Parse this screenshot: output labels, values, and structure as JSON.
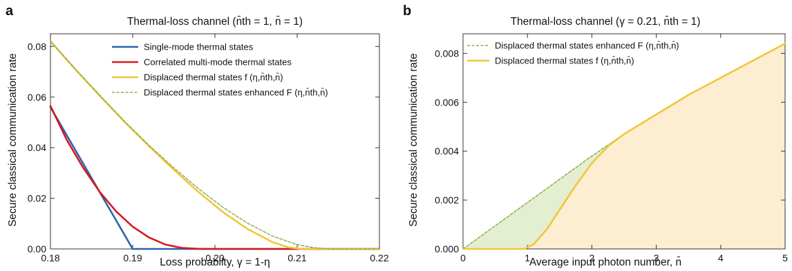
{
  "figure": {
    "panel_a_letter": "a",
    "panel_b_letter": "b"
  },
  "chart_data": [
    {
      "type": "line",
      "title": "Thermal-loss channel (n̄th = 1, n̄ = 1)",
      "xlabel": "Loss probabilty, γ = 1-η",
      "ylabel": "Secure classical communication rate",
      "xlim": [
        0.18,
        0.22
      ],
      "ylim": [
        0,
        0.085
      ],
      "xticks": [
        0.18,
        0.19,
        0.2,
        0.21,
        0.22
      ],
      "xtick_labels": [
        "0.18",
        "0.19",
        "0.20",
        "0.21",
        "0.22"
      ],
      "yticks": [
        0,
        0.02,
        0.04,
        0.06,
        0.08
      ],
      "ytick_labels": [
        "0.00",
        "0.02",
        "0.04",
        "0.06",
        "0.08"
      ],
      "grid": false,
      "legend": "top-center",
      "series": [
        {
          "name": "Single-mode thermal states",
          "color": "#2a62b0",
          "dash": "solid",
          "x": [
            0.18,
            0.19,
            0.22
          ],
          "y": [
            0.056,
            0.0,
            0.0
          ]
        },
        {
          "name": "Correlated multi-mode thermal states",
          "color": "#d7191c",
          "dash": "solid",
          "x": [
            0.18,
            0.182,
            0.184,
            0.186,
            0.188,
            0.19,
            0.192,
            0.194,
            0.196,
            0.198,
            0.1995,
            0.22
          ],
          "y": [
            0.0565,
            0.043,
            0.032,
            0.0225,
            0.0148,
            0.0088,
            0.0045,
            0.0017,
            0.0004,
            5e-05,
            0.0,
            0.0
          ]
        },
        {
          "name": "Displaced thermal states f (η,n̄th,n̄)",
          "color": "#f2c53d",
          "dash": "solid",
          "x": [
            0.18,
            0.183,
            0.186,
            0.189,
            0.192,
            0.195,
            0.198,
            0.201,
            0.204,
            0.207,
            0.209,
            0.2105,
            0.22
          ],
          "y": [
            0.082,
            0.071,
            0.0605,
            0.0502,
            0.0405,
            0.0313,
            0.0225,
            0.0145,
            0.0078,
            0.0027,
            0.0006,
            0.0,
            0.0
          ]
        },
        {
          "name": "Displaced thermal states enhanced F (η,n̄th,n̄)",
          "color": "#8db04a",
          "dash": "dashed",
          "x": [
            0.18,
            0.183,
            0.186,
            0.189,
            0.192,
            0.195,
            0.198,
            0.201,
            0.204,
            0.207,
            0.21,
            0.212,
            0.214,
            0.22
          ],
          "y": [
            0.0822,
            0.0712,
            0.0607,
            0.0505,
            0.0409,
            0.032,
            0.0238,
            0.0164,
            0.0101,
            0.0051,
            0.0017,
            0.0005,
            0.0,
            0.0
          ]
        }
      ]
    },
    {
      "type": "area",
      "title": "Thermal-loss channel (γ = 0.21, n̄th = 1)",
      "xlabel": "Average input photon number, n̄",
      "ylabel": "Secure classical communication rate",
      "xlim": [
        0,
        5
      ],
      "ylim": [
        0,
        0.0088
      ],
      "xticks": [
        0,
        1,
        2,
        3,
        4,
        5
      ],
      "xtick_labels": [
        "0",
        "1",
        "2",
        "3",
        "4",
        "5"
      ],
      "yticks": [
        0,
        0.002,
        0.004,
        0.006,
        0.008
      ],
      "ytick_labels": [
        "0.000",
        "0.002",
        "0.004",
        "0.006",
        "0.008"
      ],
      "grid": false,
      "legend": "top-left",
      "series": [
        {
          "name": "Displaced thermal states enhanced F (η,n̄th,n̄)",
          "color": "#8db04a",
          "fill": "#e4eed0",
          "dash": "dashed",
          "x": [
            0,
            0.5,
            1,
            1.5,
            2,
            2.5,
            3,
            3.5,
            4,
            4.5,
            5
          ],
          "y": [
            0,
            0.00095,
            0.0019,
            0.00285,
            0.0038,
            0.0047,
            0.0055,
            0.0063,
            0.007,
            0.0077,
            0.0084
          ]
        },
        {
          "name": "Displaced thermal states f (η,n̄th,n̄)",
          "color": "#f2c53d",
          "fill": "#fdeed2",
          "dash": "solid",
          "x": [
            0,
            0.5,
            0.95,
            1.1,
            1.3,
            1.5,
            1.75,
            2,
            2.25,
            2.5,
            2.75,
            3,
            3.5,
            4,
            4.5,
            5
          ],
          "y": [
            0,
            0,
            0,
            0.0002,
            0.0008,
            0.0016,
            0.0026,
            0.0035,
            0.0042,
            0.0047,
            0.0051,
            0.0055,
            0.0063,
            0.007,
            0.0077,
            0.0084
          ]
        }
      ]
    }
  ]
}
